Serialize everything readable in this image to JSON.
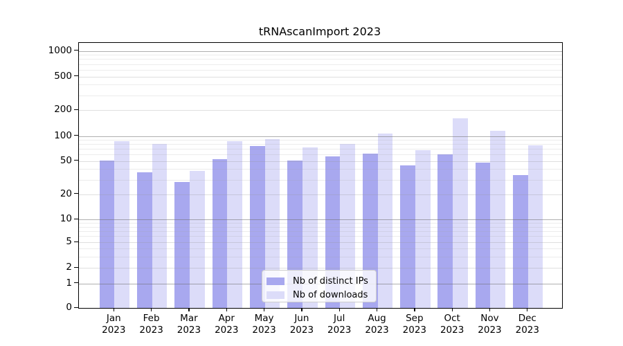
{
  "figure": {
    "title": "tRNAscanImport 2023"
  },
  "chart_data": {
    "type": "bar",
    "title": "tRNAscanImport 2023",
    "categories": [
      "Jan",
      "Feb",
      "Mar",
      "Apr",
      "May",
      "Jun",
      "Jul",
      "Aug",
      "Sep",
      "Oct",
      "Nov",
      "Dec"
    ],
    "x_year_line": "2023",
    "series": [
      {
        "name": "Nb of distinct IPs",
        "color": "#a8a8ef",
        "values": [
          51,
          37,
          28,
          53,
          76,
          51,
          57,
          62,
          44,
          60,
          48,
          34
        ]
      },
      {
        "name": "Nb of downloads",
        "color": "#dcdcf9",
        "values": [
          87,
          81,
          38,
          86,
          92,
          73,
          81,
          106,
          68,
          160,
          115,
          78
        ]
      }
    ],
    "xlabel": "",
    "ylabel": "",
    "yaxis": {
      "scale": "log-like (compressed linear-log hybrid below 10, log above)",
      "ticks": [
        0,
        1,
        2,
        5,
        10,
        20,
        50,
        100,
        200,
        500,
        1000
      ],
      "range_top": 1400
    },
    "grid": {
      "major_gridlines": [
        1,
        10,
        100,
        1000
      ],
      "labeled_tick_gridlines": [
        2,
        5,
        20,
        50,
        200,
        500
      ],
      "minor_gridlines": [
        3,
        4,
        6,
        7,
        8,
        9,
        30,
        40,
        60,
        70,
        80,
        90,
        300,
        400,
        600,
        700,
        800,
        900
      ],
      "drawn_over_bars": true
    },
    "legend": {
      "position": "bottom-center",
      "entries": [
        "Nb of distinct IPs",
        "Nb of downloads"
      ]
    }
  }
}
